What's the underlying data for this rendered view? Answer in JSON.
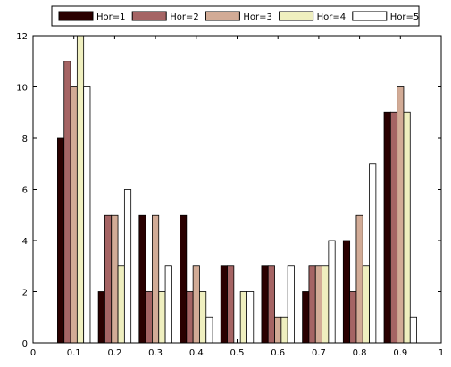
{
  "chart_data": {
    "type": "bar",
    "x": [
      0.1,
      0.2,
      0.3,
      0.4,
      0.5,
      0.6,
      0.7,
      0.8,
      0.9
    ],
    "series": [
      {
        "name": "Hor=1",
        "color": "#2a0000",
        "values": [
          8,
          2,
          5,
          5,
          3,
          3,
          2,
          4,
          9
        ]
      },
      {
        "name": "Hor=2",
        "color": "#a56464",
        "values": [
          11,
          5,
          2,
          2,
          3,
          3,
          3,
          2,
          9
        ]
      },
      {
        "name": "Hor=3",
        "color": "#d2ab96",
        "values": [
          10,
          5,
          5,
          3,
          0,
          1,
          3,
          5,
          10
        ]
      },
      {
        "name": "Hor=4",
        "color": "#efefbf",
        "values": [
          12,
          3,
          2,
          2,
          2,
          1,
          3,
          3,
          9
        ]
      },
      {
        "name": "Hor=5",
        "color": "#ffffff",
        "values": [
          10,
          6,
          3,
          1,
          2,
          3,
          4,
          7,
          1
        ]
      }
    ],
    "xlim": [
      0,
      1
    ],
    "ylim": [
      0,
      12
    ],
    "xticks": [
      0,
      0.1,
      0.2,
      0.3,
      0.4,
      0.5,
      0.6,
      0.7,
      0.8,
      0.9,
      1
    ],
    "xtick_labels": [
      "0",
      "0.1",
      "0.2",
      "0.3",
      "0.4",
      "0.5",
      "0.6",
      "0.7",
      "0.8",
      "0.9",
      "1"
    ],
    "yticks": [
      0,
      2,
      4,
      6,
      8,
      10,
      12
    ],
    "ytick_labels": [
      "0",
      "2",
      "4",
      "6",
      "8",
      "10",
      "12"
    ],
    "title": "",
    "xlabel": "",
    "ylabel": "",
    "legend_placement": "top-center",
    "grid": false
  }
}
